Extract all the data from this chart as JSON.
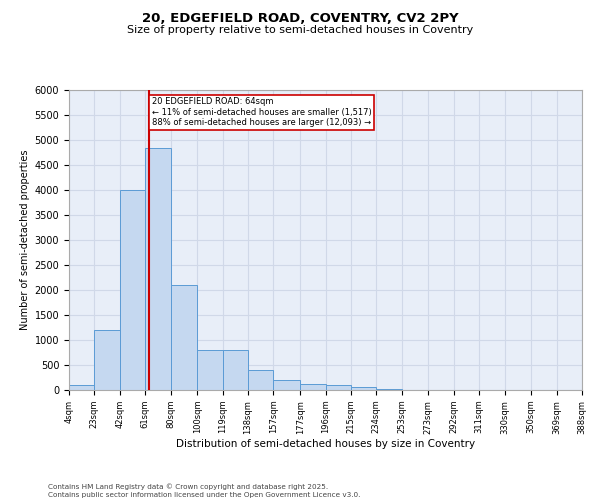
{
  "title_line1": "20, EDGEFIELD ROAD, COVENTRY, CV2 2PY",
  "title_line2": "Size of property relative to semi-detached houses in Coventry",
  "xlabel": "Distribution of semi-detached houses by size in Coventry",
  "ylabel": "Number of semi-detached properties",
  "annotation_title": "20 EDGEFIELD ROAD: 64sqm",
  "annotation_line1": "← 11% of semi-detached houses are smaller (1,517)",
  "annotation_line2": "88% of semi-detached houses are larger (12,093) →",
  "footer_line1": "Contains HM Land Registry data © Crown copyright and database right 2025.",
  "footer_line2": "Contains public sector information licensed under the Open Government Licence v3.0.",
  "bin_edges": [
    4,
    23,
    42,
    61,
    80,
    100,
    119,
    138,
    157,
    177,
    196,
    215,
    234,
    253,
    273,
    292,
    311,
    330,
    350,
    369,
    388
  ],
  "bin_labels": [
    "4sqm",
    "23sqm",
    "42sqm",
    "61sqm",
    "80sqm",
    "100sqm",
    "119sqm",
    "138sqm",
    "157sqm",
    "177sqm",
    "196sqm",
    "215sqm",
    "234sqm",
    "253sqm",
    "273sqm",
    "292sqm",
    "311sqm",
    "330sqm",
    "350sqm",
    "369sqm",
    "388sqm"
  ],
  "bar_heights": [
    100,
    1200,
    4000,
    4850,
    2100,
    800,
    800,
    400,
    200,
    130,
    100,
    60,
    20,
    5,
    3,
    2,
    1,
    0,
    0,
    0
  ],
  "bar_color": "#c5d8f0",
  "bar_edge_color": "#5b9bd5",
  "grid_color": "#d0d8e8",
  "background_color": "#e8eef8",
  "vline_color": "#cc0000",
  "vline_x": 64,
  "annotation_box_color": "#cc0000",
  "ylim": [
    0,
    6000
  ],
  "yticks": [
    0,
    500,
    1000,
    1500,
    2000,
    2500,
    3000,
    3500,
    4000,
    4500,
    5000,
    5500,
    6000
  ]
}
